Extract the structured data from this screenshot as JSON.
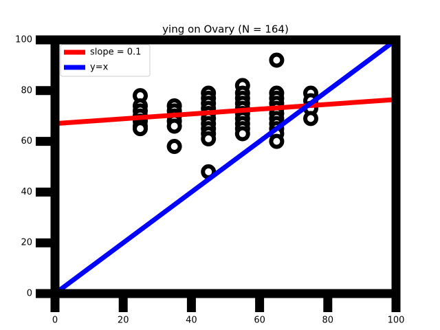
{
  "chart_data": {
    "type": "scatter",
    "title": "ying on Ovary (N = 164)",
    "x": [
      25,
      25,
      25,
      25,
      25,
      25,
      25,
      35,
      35,
      35,
      35,
      35,
      35,
      45,
      45,
      45,
      45,
      45,
      45,
      45,
      45,
      45,
      45,
      45,
      55,
      55,
      55,
      55,
      55,
      55,
      55,
      55,
      55,
      55,
      65,
      65,
      65,
      65,
      65,
      65,
      65,
      65,
      65,
      65,
      65,
      75,
      75,
      75,
      75
    ],
    "values": [
      78,
      74,
      72,
      70,
      68,
      66,
      65,
      74,
      72,
      70,
      68,
      66,
      58,
      79,
      77,
      75,
      73,
      71,
      69,
      67,
      65,
      63,
      61,
      48,
      82,
      79,
      77,
      75,
      73,
      71,
      69,
      67,
      65,
      63,
      92,
      79,
      77,
      75,
      73,
      71,
      69,
      67,
      65,
      63,
      60,
      79,
      76,
      73,
      69
    ],
    "marker_color": "#000000",
    "lines": [
      {
        "name": "slope = 0.1",
        "color": "#ff0000",
        "x": [
          0,
          100
        ],
        "values": [
          67,
          76.5
        ]
      },
      {
        "name": "y=x",
        "color": "#0000ff",
        "x": [
          0,
          100
        ],
        "values": [
          0,
          100
        ]
      }
    ],
    "xlim": [
      0,
      100
    ],
    "ylim": [
      0,
      100
    ],
    "xticks": [
      0,
      20,
      40,
      60,
      80,
      100
    ],
    "yticks": [
      0,
      20,
      40,
      60,
      80,
      100
    ],
    "legend": "upper left"
  }
}
